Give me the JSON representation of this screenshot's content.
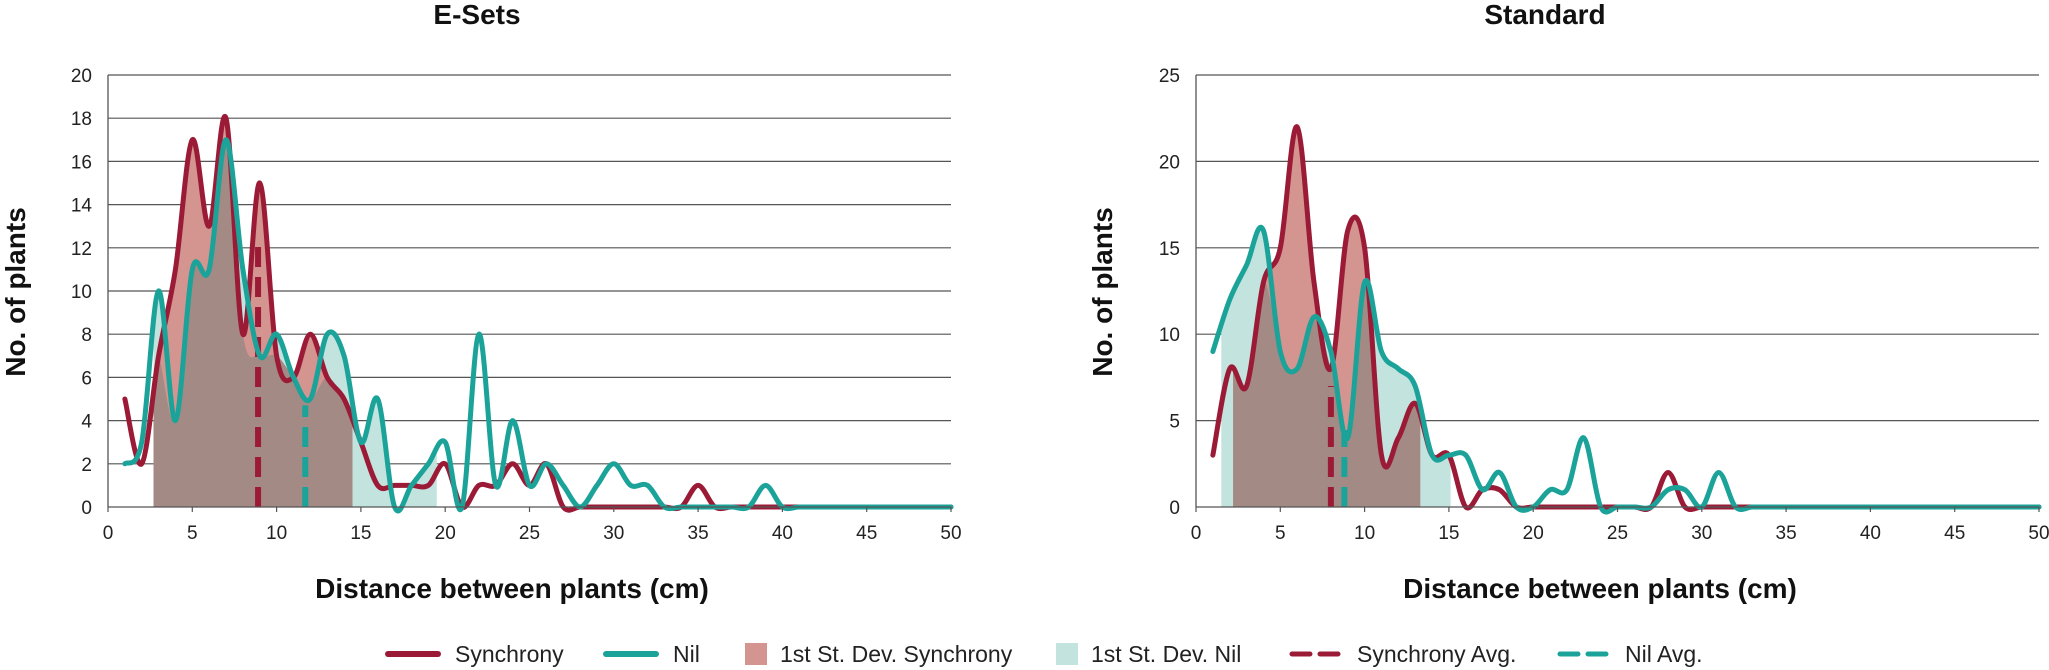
{
  "colors": {
    "synchrony": "#9b1b37",
    "nil": "#1ba39a",
    "synchrony_fill": "#d4948f",
    "nil_fill": "#c3e3df",
    "overlap_fill": "#a48a84",
    "grid": "#555555"
  },
  "legend": [
    {
      "label": "Synchrony",
      "kind": "line",
      "color": "#9b1b37"
    },
    {
      "label": "Nil",
      "kind": "line",
      "color": "#1ba39a"
    },
    {
      "label": "1st St. Dev. Synchrony",
      "kind": "box",
      "color": "#d4948f"
    },
    {
      "label": "1st St. Dev. Nil",
      "kind": "box",
      "color": "#c3e3df"
    },
    {
      "label": "Synchrony Avg.",
      "kind": "dash",
      "color": "#9b1b37"
    },
    {
      "label": "Nil Avg.",
      "kind": "dash",
      "color": "#1ba39a"
    }
  ],
  "chart_data": [
    {
      "type": "line",
      "title": "E-Sets",
      "xlabel": "Distance between plants (cm)",
      "ylabel": "No. of plants",
      "xlim": [
        0,
        50
      ],
      "ylim": [
        0,
        20
      ],
      "xticks": [
        0,
        5,
        10,
        15,
        20,
        25,
        30,
        35,
        40,
        45,
        50
      ],
      "yticks": [
        0,
        2,
        4,
        6,
        8,
        10,
        12,
        14,
        16,
        18,
        20
      ],
      "series": [
        {
          "name": "Synchrony",
          "x": [
            1,
            2,
            3,
            4,
            5,
            6,
            7,
            8,
            9,
            10,
            11,
            12,
            13,
            14,
            15,
            16,
            17,
            18,
            19,
            20,
            21,
            22,
            23,
            24,
            25,
            26,
            27,
            28,
            29,
            30,
            31,
            32,
            33,
            34,
            35,
            36,
            37,
            38,
            39,
            40,
            41,
            42,
            43,
            44,
            45,
            46,
            47,
            48,
            49,
            50
          ],
          "y": [
            5,
            2,
            7,
            11,
            17,
            13,
            18,
            8,
            15,
            7,
            6,
            8,
            6,
            5,
            3,
            1,
            1,
            1,
            1,
            2,
            0,
            1,
            1,
            2,
            1,
            2,
            0,
            0,
            0,
            0,
            0,
            0,
            0,
            0,
            1,
            0,
            0,
            0,
            0,
            0,
            0,
            0,
            0,
            0,
            0,
            0,
            0,
            0,
            0,
            0
          ]
        },
        {
          "name": "Nil",
          "x": [
            1,
            2,
            3,
            4,
            5,
            6,
            7,
            8,
            9,
            10,
            11,
            12,
            13,
            14,
            15,
            16,
            17,
            18,
            19,
            20,
            21,
            22,
            23,
            24,
            25,
            26,
            27,
            28,
            29,
            30,
            31,
            32,
            33,
            34,
            35,
            36,
            37,
            38,
            39,
            40,
            41,
            42,
            43,
            44,
            45,
            46,
            47,
            48,
            49,
            50
          ],
          "y": [
            2,
            3,
            10,
            4,
            11,
            11,
            17,
            11,
            7,
            8,
            6,
            5,
            8,
            7,
            3,
            5,
            0,
            1,
            2,
            3,
            0,
            8,
            1,
            4,
            1,
            2,
            1,
            0,
            1,
            2,
            1,
            1,
            0,
            0,
            0,
            0,
            0,
            0,
            1,
            0,
            0,
            0,
            0,
            0,
            0,
            0,
            0,
            0,
            0,
            0
          ]
        }
      ],
      "std_dev": {
        "synchrony": [
          2.7,
          14.5
        ],
        "nil": [
          2.7,
          19.5
        ]
      },
      "averages": {
        "synchrony": 8.9,
        "nil": 11.7
      }
    },
    {
      "type": "line",
      "title": "Standard",
      "xlabel": "Distance between plants (cm)",
      "ylabel": "No. of plants",
      "xlim": [
        0,
        50
      ],
      "ylim": [
        0,
        25
      ],
      "xticks": [
        0,
        5,
        10,
        15,
        20,
        25,
        30,
        35,
        40,
        45,
        50
      ],
      "yticks": [
        0,
        5,
        10,
        15,
        20,
        25
      ],
      "series": [
        {
          "name": "Synchrony",
          "x": [
            1,
            2,
            3,
            4,
            5,
            6,
            7,
            8,
            9,
            10,
            11,
            12,
            13,
            14,
            15,
            16,
            17,
            18,
            19,
            20,
            21,
            22,
            23,
            24,
            25,
            26,
            27,
            28,
            29,
            30,
            31,
            32,
            33,
            34,
            35,
            36,
            37,
            38,
            39,
            40,
            41,
            42,
            43,
            44,
            45,
            46,
            47,
            48,
            49,
            50
          ],
          "y": [
            3,
            8,
            7,
            13,
            15,
            22,
            13,
            8,
            16,
            15,
            3,
            4,
            6,
            3,
            3,
            0,
            1,
            1,
            0,
            0,
            0,
            0,
            0,
            0,
            0,
            0,
            0,
            2,
            0,
            0,
            0,
            0,
            0,
            0,
            0,
            0,
            0,
            0,
            0,
            0,
            0,
            0,
            0,
            0,
            0,
            0,
            0,
            0,
            0,
            0
          ]
        },
        {
          "name": "Nil",
          "x": [
            1,
            2,
            3,
            4,
            5,
            6,
            7,
            8,
            9,
            10,
            11,
            12,
            13,
            14,
            15,
            16,
            17,
            18,
            19,
            20,
            21,
            22,
            23,
            24,
            25,
            26,
            27,
            28,
            29,
            30,
            31,
            32,
            33,
            34,
            35,
            36,
            37,
            38,
            39,
            40,
            41,
            42,
            43,
            44,
            45,
            46,
            47,
            48,
            49,
            50
          ],
          "y": [
            9,
            12,
            14,
            16,
            9,
            8,
            11,
            9,
            4,
            13,
            9,
            8,
            7,
            3,
            3,
            3,
            1,
            2,
            0,
            0,
            1,
            1,
            4,
            0,
            0,
            0,
            0,
            1,
            1,
            0,
            2,
            0,
            0,
            0,
            0,
            0,
            0,
            0,
            0,
            0,
            0,
            0,
            0,
            0,
            0,
            0,
            0,
            0,
            0,
            0
          ]
        }
      ],
      "std_dev": {
        "synchrony": [
          2.2,
          13.3
        ],
        "nil": [
          1.5,
          15.1
        ]
      },
      "averages": {
        "synchrony": 8.0,
        "nil": 8.8
      }
    }
  ]
}
